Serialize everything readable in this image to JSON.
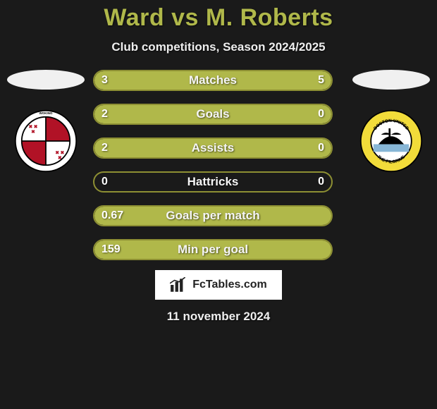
{
  "title": "Ward vs M. Roberts",
  "subtitle": "Club competitions, Season 2024/2025",
  "date": "11 november 2024",
  "watermark_text": "FcTables.com",
  "colors": {
    "background": "#1a1a1a",
    "accent": "#b0b84a",
    "bar_border": "#8d8f33",
    "ellipse": "#f0f0f0",
    "text": "#ffffff"
  },
  "crest_left": {
    "name": "Woking FC",
    "shield_bg": "#ffffff",
    "shield_border": "#000000",
    "quarters": [
      "#b11226",
      "#ffffff",
      "#ffffff",
      "#b11226"
    ]
  },
  "crest_right": {
    "name": "Boston United",
    "ring_bg": "#f2dc3a",
    "ring_text": "BOSTON UNITED  THE PILGRIMS",
    "inner_bg": "#000000",
    "ship_color": "#000000",
    "water_color": "#87b6d6"
  },
  "bars": [
    {
      "label": "Matches",
      "left": "3",
      "right": "5",
      "left_w": 37,
      "right_w": 63,
      "show_right": true
    },
    {
      "label": "Goals",
      "left": "2",
      "right": "0",
      "left_w": 78,
      "right_w": 22,
      "show_right": true
    },
    {
      "label": "Assists",
      "left": "2",
      "right": "0",
      "left_w": 78,
      "right_w": 22,
      "show_right": true
    },
    {
      "label": "Hattricks",
      "left": "0",
      "right": "0",
      "left_w": 0,
      "right_w": 0,
      "show_right": true
    },
    {
      "label": "Goals per match",
      "left": "0.67",
      "right": "",
      "left_w": 100,
      "right_w": 0,
      "show_right": false
    },
    {
      "label": "Min per goal",
      "left": "159",
      "right": "",
      "left_w": 100,
      "right_w": 0,
      "show_right": false
    }
  ]
}
